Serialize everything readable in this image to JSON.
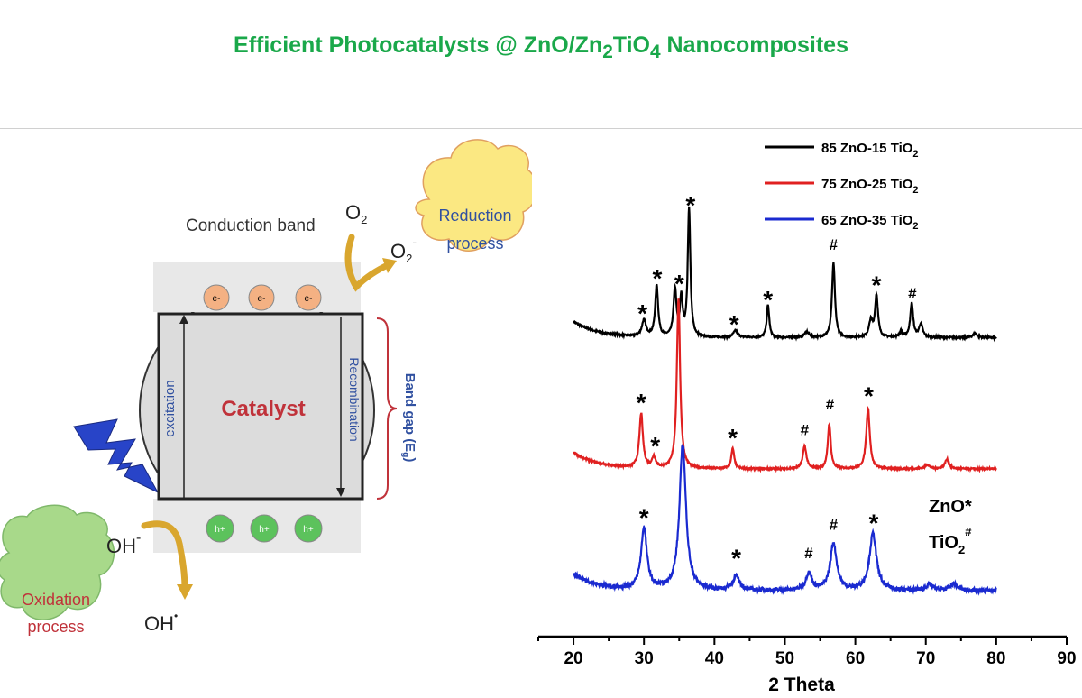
{
  "page": {
    "title_parts": [
      {
        "t": "Efficient Photocatalysts @ ZnO/Zn"
      },
      {
        "t": "2",
        "sub": true
      },
      {
        "t": "TiO"
      },
      {
        "t": "4",
        "sub": true
      },
      {
        "t": " Nanocomposites"
      }
    ]
  },
  "scheme": {
    "conduction_band": "Conduction band",
    "o2": "O",
    "o2_sub": "2",
    "o2_minus": "O",
    "o2_minus_sub": "2",
    "o2_minus_sup": "-",
    "reduction": [
      "Reduction",
      "process"
    ],
    "oxidation": [
      "Oxidation",
      "process"
    ],
    "excitation": "excitation",
    "recombination": "Recombination",
    "catalyst": "Catalyst",
    "band_gap": "Band gap (E",
    "band_gap_sub": "g",
    "band_gap_end": ")",
    "electron": "e-",
    "hole": "h+",
    "oh_minus": "OH",
    "oh_minus_sup": "-",
    "oh_radical": "OH",
    "oh_radical_sup": "•",
    "colors": {
      "catalyst": "#c0323a",
      "arrow": "#d9a62e",
      "cloud_reduction": "#fbe882",
      "cloud_oxidation": "#a8d98a",
      "electron": "#f4b183",
      "hole": "#5cc25c",
      "band_text": "#3050a0"
    }
  },
  "chart_data": {
    "type": "line",
    "xlabel": "2 Theta",
    "xlim": [
      15,
      90
    ],
    "xticks": [
      20,
      30,
      40,
      50,
      60,
      70,
      80,
      90
    ],
    "ylabel": "",
    "grid": false,
    "legend_position": "top-right",
    "series": [
      {
        "name_main": "85 ZnO-15 TiO",
        "name_sub": "2",
        "color": "#000000",
        "baseline": 0.97,
        "noise": 0.006,
        "peaks": [
          [
            30.0,
            0.12,
            0.35
          ],
          [
            31.8,
            0.38,
            0.25
          ],
          [
            34.4,
            0.35,
            0.25
          ],
          [
            35.3,
            0.28,
            0.22
          ],
          [
            36.4,
            0.95,
            0.22
          ],
          [
            43.0,
            0.05,
            0.4
          ],
          [
            47.6,
            0.24,
            0.22
          ],
          [
            53.1,
            0.04,
            0.4
          ],
          [
            56.9,
            0.55,
            0.25
          ],
          [
            62.2,
            0.12,
            0.3
          ],
          [
            63.0,
            0.31,
            0.25
          ],
          [
            66.5,
            0.04,
            0.3
          ],
          [
            68.0,
            0.25,
            0.25
          ],
          [
            69.3,
            0.1,
            0.3
          ],
          [
            77.0,
            0.03,
            0.4
          ]
        ],
        "markers": [
          [
            29.8,
            "*",
            1.18
          ],
          [
            31.9,
            "*",
            1.44
          ],
          [
            35.0,
            "*",
            1.4
          ],
          [
            36.6,
            "*",
            1.98
          ],
          [
            42.8,
            "*",
            1.1
          ],
          [
            47.6,
            "*",
            1.28
          ],
          [
            56.9,
            "#",
            1.62
          ],
          [
            63.0,
            "*",
            1.39
          ],
          [
            68.1,
            "#",
            1.26
          ]
        ]
      },
      {
        "name_main": "75 ZnO-25 TiO",
        "name_sub": "2",
        "color": "#e02020",
        "baseline": 0.0,
        "noise": 0.006,
        "peaks": [
          [
            29.6,
            0.4,
            0.3
          ],
          [
            31.4,
            0.08,
            0.3
          ],
          [
            34.9,
            1.25,
            0.28
          ],
          [
            42.6,
            0.15,
            0.25
          ],
          [
            52.8,
            0.17,
            0.3
          ],
          [
            56.3,
            0.33,
            0.25
          ],
          [
            61.8,
            0.45,
            0.3
          ],
          [
            70.2,
            0.03,
            0.4
          ],
          [
            73.0,
            0.07,
            0.35
          ]
        ],
        "markers": [
          [
            29.6,
            "*",
            0.52
          ],
          [
            31.6,
            "*",
            0.2
          ],
          [
            42.6,
            "*",
            0.26
          ],
          [
            52.8,
            "#",
            0.25
          ],
          [
            56.4,
            "#",
            0.44
          ],
          [
            61.9,
            "*",
            0.57
          ]
        ]
      },
      {
        "name_main": "65 ZnO-35 TiO",
        "name_sub": "2",
        "color": "#1a2ad0",
        "baseline": -0.9,
        "noise": 0.015,
        "peaks": [
          [
            30.0,
            0.45,
            0.5
          ],
          [
            35.5,
            1.08,
            0.55
          ],
          [
            43.1,
            0.1,
            0.6
          ],
          [
            53.4,
            0.13,
            0.5
          ],
          [
            56.9,
            0.35,
            0.55
          ],
          [
            62.5,
            0.42,
            0.6
          ],
          [
            70.5,
            0.04,
            0.6
          ],
          [
            74.0,
            0.05,
            0.6
          ]
        ],
        "markers": [
          [
            30.0,
            "*",
            -0.33
          ],
          [
            43.1,
            "*",
            -0.63
          ],
          [
            53.4,
            "#",
            -0.66
          ],
          [
            56.9,
            "#",
            -0.45
          ],
          [
            62.6,
            "*",
            -0.37
          ]
        ]
      }
    ],
    "annotations": [
      {
        "text": "ZnO",
        "sup": "*"
      },
      {
        "text": "TiO",
        "sub": "2",
        "sup": "#"
      }
    ]
  }
}
